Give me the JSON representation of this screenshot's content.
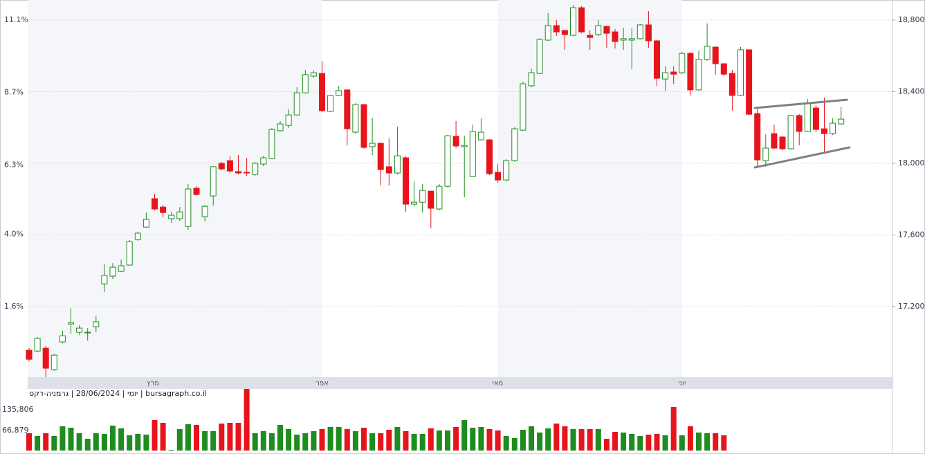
{
  "chart_data": {
    "type": "candlestick",
    "info": "יומי | 28/06/2024 | גרמניה-דקס | bursagraph.co.il",
    "up_color": "#1e8c1e",
    "down_color": "#e8141c",
    "trend_color": "#808080",
    "months": [
      {
        "name": "מרץ",
        "start": 14.8
      },
      {
        "name": "אפר",
        "start": 35
      },
      {
        "name": "מאי",
        "start": 56
      },
      {
        "name": "יוני",
        "start": 78
      }
    ],
    "ylim": [
      16806,
      18912
    ],
    "yticks": [
      {
        "value": 17200,
        "label": "17,200"
      },
      {
        "value": 17600,
        "label": "17,600"
      },
      {
        "value": 18000,
        "label": "18,000"
      },
      {
        "value": 18400,
        "label": "18,400"
      },
      {
        "value": 18800,
        "label": "18,800"
      }
    ],
    "y2lim": [
      -0.74,
      11.77
    ],
    "y2ticks": [
      {
        "value": 1.6,
        "label": "1.6%"
      },
      {
        "value": 4.0,
        "label": "4.0%"
      },
      {
        "value": 6.3,
        "label": "6.3%"
      },
      {
        "value": 8.7,
        "label": "8.7%"
      },
      {
        "value": 11.1,
        "label": "11.1%"
      }
    ],
    "open": [
      16956,
      16952,
      16968,
      16848,
      17003,
      17103,
      17057,
      17053,
      17088,
      17327,
      17370,
      17397,
      17432,
      17575,
      17644,
      17803,
      17756,
      17691,
      17691,
      17648,
      17861,
      17702,
      17818,
      18000,
      18015,
      17954,
      17950,
      17938,
      17996,
      18027,
      18182,
      18212,
      18270,
      18394,
      18487,
      18502,
      18290,
      18379,
      18410,
      18174,
      18328,
      18093,
      18112,
      17981,
      17946,
      18031,
      17772,
      17783,
      17845,
      17745,
      17872,
      18151,
      18093,
      17926,
      18131,
      18131,
      17950,
      17907,
      18015,
      18185,
      18433,
      18502,
      18688,
      18769,
      18742,
      18715,
      18869,
      18715,
      18719,
      18765,
      18734,
      18688,
      18688,
      18696,
      18773,
      18684,
      18471,
      18510,
      18506,
      18614,
      18410,
      18580,
      18649,
      18556,
      18502,
      18379,
      18634,
      18278,
      18015,
      18166,
      18147,
      18081,
      18267,
      18178,
      18309,
      18193,
      18166,
      18220
    ],
    "high": [
      16968,
      17030,
      16980,
      16937,
      17065,
      17192,
      17096,
      17080,
      17150,
      17436,
      17443,
      17463,
      17571,
      17617,
      17725,
      17830,
      17768,
      17729,
      17756,
      17884,
      17872,
      17768,
      17984,
      18008,
      18042,
      18046,
      18031,
      18008,
      18042,
      18197,
      18236,
      18301,
      18425,
      18522,
      18518,
      18572,
      18383,
      18433,
      18410,
      18336,
      18332,
      18255,
      18116,
      18139,
      18205,
      18039,
      17899,
      17884,
      17845,
      17884,
      18158,
      18236,
      18154,
      18216,
      18251,
      18135,
      17996,
      18023,
      18201,
      18456,
      18529,
      18699,
      18839,
      18800,
      18742,
      18885,
      18877,
      18742,
      18800,
      18765,
      18750,
      18757,
      18754,
      18777,
      18850,
      18688,
      18541,
      18541,
      18622,
      18622,
      18630,
      18781,
      18653,
      18560,
      18522,
      18649,
      18634,
      18313,
      18162,
      18216,
      18154,
      18270,
      18274,
      18359,
      18325,
      18367,
      18251,
      18313
    ],
    "low": [
      16894,
      16945,
      16806,
      16840,
      16995,
      17049,
      17041,
      17010,
      17057,
      17281,
      17354,
      17393,
      17428,
      17567,
      17640,
      17737,
      17698,
      17668,
      17679,
      17629,
      17818,
      17675,
      17764,
      17961,
      17946,
      17938,
      17930,
      17930,
      17984,
      18023,
      18178,
      18197,
      18267,
      18390,
      18479,
      18286,
      18286,
      18375,
      18100,
      18166,
      18081,
      18046,
      17876,
      17876,
      17938,
      17729,
      17760,
      17725,
      17637,
      17737,
      17865,
      18085,
      17810,
      17923,
      18127,
      17934,
      17892,
      17899,
      18008,
      18182,
      18425,
      18498,
      18684,
      18711,
      18634,
      18711,
      18726,
      18634,
      18711,
      18645,
      18641,
      18634,
      18526,
      18692,
      18645,
      18433,
      18406,
      18444,
      18498,
      18379,
      18406,
      18572,
      18495,
      18487,
      18294,
      18375,
      18267,
      17977,
      17981,
      18077,
      18073,
      18077,
      18100,
      18174,
      18174,
      18058,
      18158,
      18216
    ],
    "close": [
      16906,
      17022,
      16856,
      16929,
      17037,
      17111,
      17080,
      17057,
      17115,
      17374,
      17420,
      17428,
      17563,
      17610,
      17687,
      17745,
      17725,
      17710,
      17729,
      17857,
      17826,
      17760,
      17981,
      17969,
      17957,
      17946,
      17946,
      18000,
      18031,
      18189,
      18220,
      18270,
      18394,
      18495,
      18506,
      18294,
      18379,
      18406,
      18193,
      18328,
      18089,
      18112,
      17965,
      17946,
      18042,
      17772,
      17783,
      17849,
      17749,
      17872,
      18154,
      18097,
      18100,
      18178,
      18174,
      17942,
      17907,
      18015,
      18193,
      18444,
      18506,
      18692,
      18769,
      18734,
      18719,
      18869,
      18734,
      18703,
      18769,
      18726,
      18680,
      18696,
      18696,
      18773,
      18684,
      18475,
      18506,
      18498,
      18614,
      18410,
      18580,
      18653,
      18556,
      18498,
      18379,
      18634,
      18274,
      18019,
      18085,
      18085,
      18081,
      18267,
      18178,
      18336,
      18189,
      18166,
      18224,
      18247
    ],
    "volume": [
      57425,
      48237,
      57425,
      48237,
      80395,
      75801,
      57425,
      39049,
      57425,
      55128,
      82692,
      73504,
      50534,
      55128,
      52831,
      101068,
      91880,
      2297,
      71207,
      87286,
      84989,
      64316,
      64316,
      89583,
      91880,
      91880,
      204433,
      57425,
      64316,
      57425,
      84989,
      71207,
      52831,
      57425,
      64316,
      71207,
      78098,
      78098,
      71207,
      64316,
      75801,
      57425,
      57425,
      68910,
      78098,
      64316,
      55128,
      55128,
      73504,
      66613,
      66613,
      78098,
      101068,
      75801,
      78098,
      71207,
      66613,
      48237,
      41346,
      68910,
      80395,
      59722,
      73504,
      89583,
      80395,
      71207,
      71207,
      71207,
      71207,
      39049,
      62019,
      59722,
      55128,
      48237,
      52831,
      55128,
      50534,
      144711,
      50534,
      80395,
      59722,
      57425,
      57425,
      50534,
      null,
      null,
      null,
      null,
      null,
      null,
      null,
      null,
      null,
      null,
      null,
      null,
      null,
      null
    ],
    "volume_ylim": [
      0,
      209000
    ],
    "volume_ticks": [
      {
        "value": 135806,
        "label": "135,806"
      },
      {
        "value": 66879,
        "label": "66,879"
      }
    ],
    "trendlines": [
      {
        "x": [
          86.7,
          97.7
        ],
        "y": [
          18309,
          18355
        ]
      },
      {
        "x": [
          86.7,
          98.0
        ],
        "y": [
          17977,
          18089
        ]
      }
    ]
  }
}
